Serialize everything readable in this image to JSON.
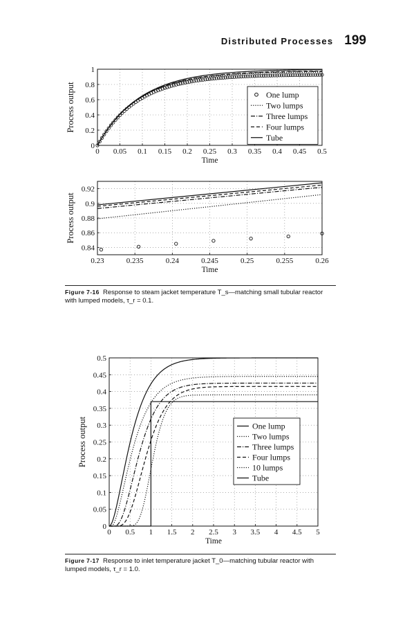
{
  "header": {
    "section_title": "Distributed Processes",
    "page_number": "199"
  },
  "figures": [
    {
      "label": "Figure 7-16",
      "caption": "Response to steam jacket temperature T_s—matching small tubular reactor with lumped models, τ_r = 0.1."
    },
    {
      "label": "Figure 7-17",
      "caption": "Response to inlet temperature jacket T_0—matching tubular reactor with lumped models, τ_r = 1.0."
    }
  ],
  "chart_data": [
    {
      "type": "line",
      "xlabel": "Time",
      "ylabel": "Process output",
      "xlim": [
        0,
        0.5
      ],
      "ylim": [
        0,
        1
      ],
      "xticks": [
        "0",
        "0.05",
        "0.1",
        "0.15",
        "0.2",
        "0.25",
        "0.3",
        "0.35",
        "0.4",
        "0.45",
        "0.5"
      ],
      "yticks": [
        "0",
        "0.2",
        "0.4",
        "0.6",
        "0.8",
        "1"
      ],
      "grid": true,
      "legend": "right",
      "series": [
        {
          "name": "One lump",
          "style": "circle",
          "final": 0.93,
          "tau": 0.09,
          "delay": 0
        },
        {
          "name": "Two lumps",
          "style": "dotted",
          "final": 0.965,
          "tau": 0.092,
          "delay": 0
        },
        {
          "name": "Three lumps",
          "style": "dashdot",
          "final": 0.975,
          "tau": 0.093,
          "delay": 0
        },
        {
          "name": "Four lumps",
          "style": "dashed",
          "final": 0.98,
          "tau": 0.094,
          "delay": 0
        },
        {
          "name": "Tube",
          "style": "solid",
          "final": 1.0,
          "tau": 0.095,
          "delay": 0
        }
      ]
    },
    {
      "type": "line",
      "xlabel": "Time",
      "ylabel": "Process output",
      "xlim": [
        0.23,
        0.26
      ],
      "ylim": [
        0.83,
        0.93
      ],
      "xticks": [
        "0.23",
        "0.235",
        "0.24",
        "0.245",
        "0.25",
        "0.255",
        "0.26"
      ],
      "yticks": [
        "0.84",
        "0.86",
        "0.88",
        "0.9",
        "0.92"
      ],
      "grid": true,
      "series": [
        {
          "name": "Tube",
          "style": "solid",
          "points": [
            [
              0.23,
              0.898
            ],
            [
              0.26,
              0.928
            ]
          ]
        },
        {
          "name": "Four lumps",
          "style": "dashed",
          "points": [
            [
              0.23,
              0.896
            ],
            [
              0.26,
              0.925
            ]
          ]
        },
        {
          "name": "Three lumps",
          "style": "dashdot",
          "points": [
            [
              0.23,
              0.893
            ],
            [
              0.26,
              0.922
            ]
          ]
        },
        {
          "name": "Two lumps",
          "style": "dotted",
          "points": [
            [
              0.23,
              0.879
            ],
            [
              0.26,
              0.912
            ]
          ]
        },
        {
          "name": "One lump",
          "style": "circle",
          "points": [
            [
              0.2305,
              0.837
            ],
            [
              0.2355,
              0.841
            ],
            [
              0.2405,
              0.845
            ],
            [
              0.2455,
              0.849
            ],
            [
              0.2505,
              0.852
            ],
            [
              0.2555,
              0.855
            ],
            [
              0.26,
              0.859
            ]
          ]
        }
      ]
    },
    {
      "type": "line",
      "xlabel": "Time",
      "ylabel": "Process output",
      "xlim": [
        0,
        5
      ],
      "ylim": [
        0,
        0.5
      ],
      "xticks": [
        "0",
        "0.5",
        "1",
        "1.5",
        "2",
        "2.5",
        "3",
        "3.5",
        "4",
        "4.5",
        "5"
      ],
      "yticks": [
        "0",
        "0.05",
        "0.1",
        "0.15",
        "0.2",
        "0.25",
        "0.3",
        "0.35",
        "0.4",
        "0.45",
        "0.5"
      ],
      "grid": true,
      "legend": "right",
      "series": [
        {
          "name": "One lump",
          "style": "solid",
          "final": 0.5,
          "tau": 0.3,
          "delay": 0.0,
          "order": 1.7
        },
        {
          "name": "Two lumps",
          "style": "dotted",
          "final": 0.445,
          "tau": 0.3,
          "delay": 0.05,
          "order": 2
        },
        {
          "name": "Three lumps",
          "style": "dashdot",
          "final": 0.425,
          "tau": 0.23,
          "delay": 0.1,
          "order": 3
        },
        {
          "name": "Four lumps",
          "style": "dashed",
          "final": 0.415,
          "tau": 0.2,
          "delay": 0.15,
          "order": 4
        },
        {
          "name": "10 lumps",
          "style": "dotted",
          "final": 0.39,
          "tau": 0.09,
          "delay": 0.35,
          "order": 8
        },
        {
          "name": "Tube",
          "style": "solid",
          "step_at": 1.0,
          "final": 0.37
        }
      ]
    }
  ]
}
